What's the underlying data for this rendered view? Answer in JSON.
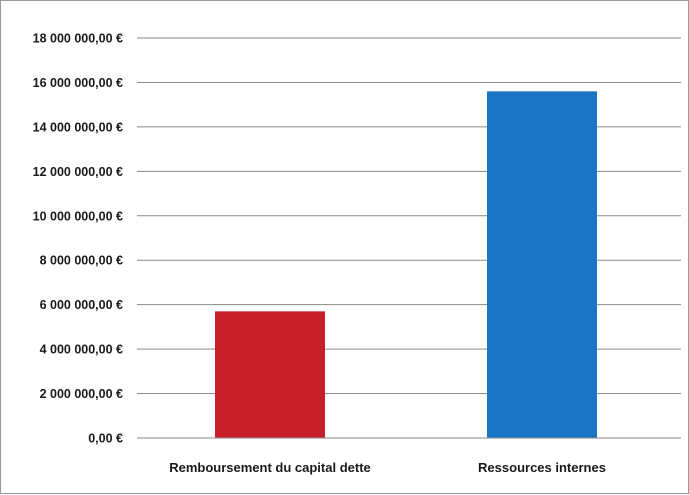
{
  "chart_data": {
    "type": "bar",
    "categories": [
      "Remboursement du capital dette",
      "Ressources  internes"
    ],
    "values": [
      5700000,
      15600000
    ],
    "colors": [
      "#c8202a",
      "#1b75c4"
    ],
    "ylim": [
      0,
      18000000
    ],
    "ytick_step": 2000000,
    "yticks": [
      "0,00 €",
      "2 000 000,00 €",
      "4 000 000,00 €",
      "6 000 000,00 €",
      "8 000 000,00 €",
      "10 000 000,00 €",
      "12 000 000,00 €",
      "14 000 000,00 €",
      "16 000 000,00 €",
      "18 000 000,00 €"
    ],
    "grid": true,
    "legend": false
  }
}
